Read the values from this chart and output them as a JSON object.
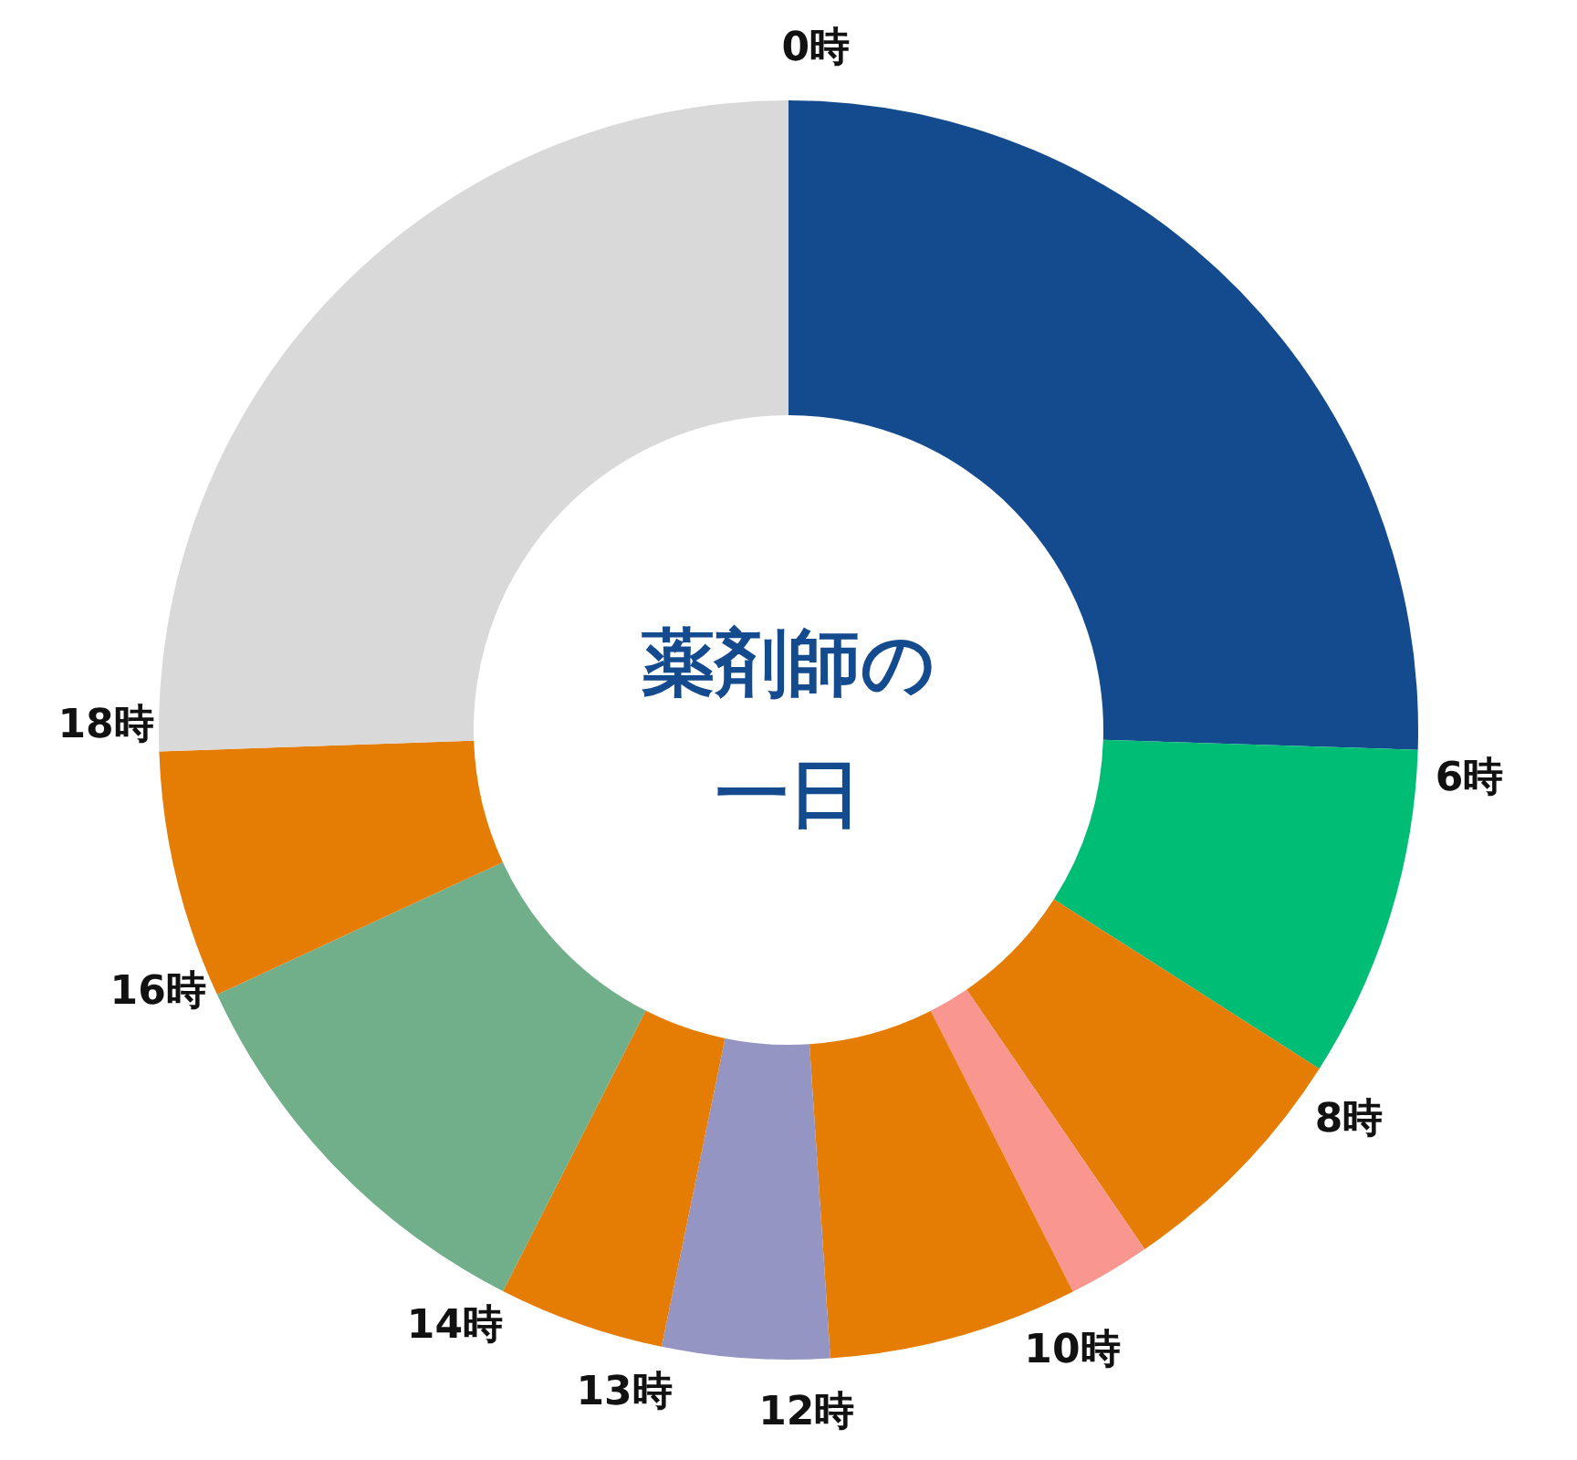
{
  "chart_data": {
    "type": "donut",
    "title": "薬剤師の一日",
    "categories": [
      "0時",
      "6時",
      "8時",
      null,
      "10時",
      "12時",
      "13時",
      "14時",
      "16時",
      "18時"
    ],
    "values": [
      25.5,
      8.54,
      6.39,
      2.11,
      6.4,
      4.29,
      4.26,
      10.61,
      6.36,
      25.54
    ],
    "colors": [
      "#134b8e",
      "#00bd76",
      "#e57c04",
      "#f99690",
      "#e57c04",
      "#9595c3",
      "#e57c04",
      "#71ae8a",
      "#e57c04",
      "#d9d9d9"
    ]
  }
}
